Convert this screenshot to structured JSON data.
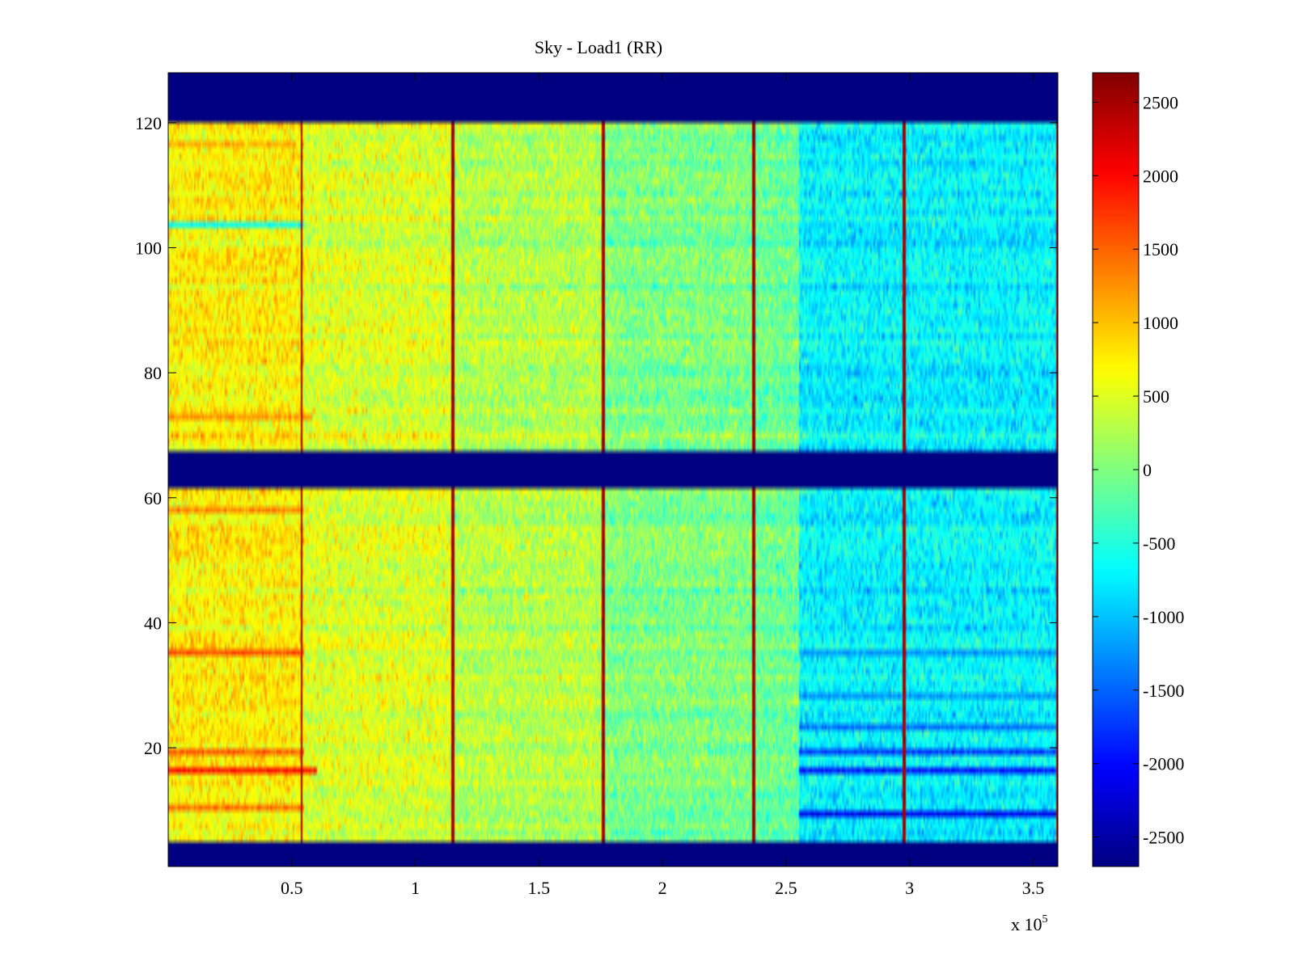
{
  "chart_data": {
    "type": "heatmap",
    "title": "Sky - Load1 (RR)",
    "xlabel": "",
    "ylabel": "",
    "x_multiplier_label": "x 10",
    "x_multiplier_exponent": "5",
    "xlim": [
      0,
      3.6
    ],
    "ylim": [
      1,
      128
    ],
    "x_ticks": [
      0.5,
      1,
      1.5,
      2,
      2.5,
      3,
      3.5
    ],
    "x_tick_labels": [
      "0.5",
      "1",
      "1.5",
      "2",
      "2.5",
      "3",
      "3.5"
    ],
    "y_ticks": [
      20,
      40,
      60,
      80,
      100,
      120
    ],
    "y_tick_labels": [
      "20",
      "40",
      "60",
      "80",
      "100",
      "120"
    ],
    "colorbar": {
      "colormap": "jet",
      "range": [
        -2700,
        2700
      ],
      "ticks": [
        2500,
        2000,
        1500,
        1000,
        500,
        0,
        -500,
        -1000,
        -1500,
        -2000,
        -2500
      ],
      "tick_labels": [
        "2500",
        "2000",
        "1500",
        "1000",
        "500",
        "0",
        "-500",
        "-1000",
        "-1500",
        "-2000",
        "-2500"
      ]
    },
    "masked_channel_bands": [
      [
        121,
        128
      ],
      [
        62,
        67
      ],
      [
        1,
        4
      ]
    ],
    "masked_value": -2700,
    "spike_columns_x": [
      0.54,
      1.15,
      1.76,
      2.37,
      2.98,
      3.6
    ],
    "segments": [
      {
        "x_start": 0.0,
        "x_end": 0.55,
        "mean_level": 750
      },
      {
        "x_start": 0.55,
        "x_end": 1.15,
        "mean_level": 500
      },
      {
        "x_start": 1.15,
        "x_end": 1.76,
        "mean_level": 300
      },
      {
        "x_start": 1.76,
        "x_end": 2.37,
        "mean_level": 0
      },
      {
        "x_start": 2.37,
        "x_end": 2.55,
        "mean_level": -100
      },
      {
        "x_start": 2.55,
        "x_end": 3.6,
        "mean_level": -700
      }
    ],
    "strong_rows": [
      {
        "y": 35,
        "x_end": 0.55,
        "value": 1600
      },
      {
        "y": 16,
        "x_end": 0.6,
        "value": 1900
      },
      {
        "y": 19,
        "x_end": 0.55,
        "value": 1500
      },
      {
        "y": 10,
        "x_end": 0.55,
        "value": 1400
      },
      {
        "y": 73,
        "x_end": 0.58,
        "value": 1200
      },
      {
        "y": 117,
        "x_end": 0.52,
        "value": 1100
      },
      {
        "y": 58,
        "x_end": 0.55,
        "value": 1300
      },
      {
        "y": 9,
        "x_start": 2.55,
        "value": -2100
      },
      {
        "y": 16,
        "x_start": 2.55,
        "value": -1900
      },
      {
        "y": 19,
        "x_start": 2.55,
        "value": -1700
      },
      {
        "y": 23,
        "x_start": 2.55,
        "value": -1400
      },
      {
        "y": 35,
        "x_start": 2.55,
        "value": -1200
      },
      {
        "y": 28,
        "x_start": 2.55,
        "value": -1200
      },
      {
        "y": 104,
        "x_end": 0.55,
        "value": -600
      }
    ]
  }
}
